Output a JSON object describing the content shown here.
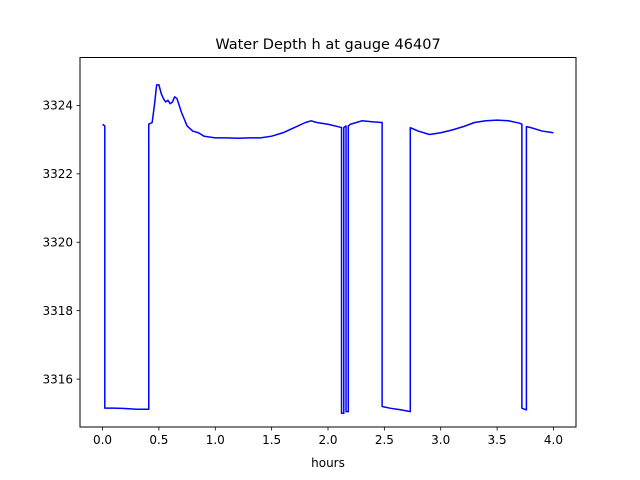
{
  "chart_data": {
    "type": "line",
    "title": "Water Depth h at gauge 46407",
    "xlabel": "hours",
    "ylabel": "",
    "xlim": [
      -0.2,
      4.2
    ],
    "ylim": [
      3314.6,
      3325.4
    ],
    "xticks": [
      0.0,
      0.5,
      1.0,
      1.5,
      2.0,
      2.5,
      3.0,
      3.5,
      4.0
    ],
    "xtick_labels": [
      "0.0",
      "0.5",
      "1.0",
      "1.5",
      "2.0",
      "2.5",
      "3.0",
      "3.5",
      "4.0"
    ],
    "yticks": [
      3316,
      3318,
      3320,
      3322,
      3324
    ],
    "ytick_labels": [
      "3316",
      "3318",
      "3320",
      "3322",
      "3324"
    ],
    "grid": false,
    "legend": "none",
    "series": [
      {
        "color": "#0000ff",
        "x": [
          0.0,
          0.02,
          0.02,
          0.1,
          0.2,
          0.3,
          0.41,
          0.41,
          0.44,
          0.46,
          0.48,
          0.5,
          0.52,
          0.54,
          0.56,
          0.58,
          0.6,
          0.62,
          0.64,
          0.66,
          0.68,
          0.7,
          0.75,
          0.8,
          0.85,
          0.9,
          1.0,
          1.1,
          1.2,
          1.3,
          1.4,
          1.5,
          1.6,
          1.7,
          1.8,
          1.85,
          1.9,
          2.0,
          2.1,
          2.12,
          2.12,
          2.14,
          2.14,
          2.16,
          2.16,
          2.18,
          2.18,
          2.2,
          2.3,
          2.4,
          2.48,
          2.48,
          2.55,
          2.65,
          2.73,
          2.73,
          2.8,
          2.9,
          3.0,
          3.1,
          3.2,
          3.3,
          3.4,
          3.5,
          3.6,
          3.7,
          3.72,
          3.72,
          3.76,
          3.76,
          3.8,
          3.9,
          4.0
        ],
        "y": [
          3323.45,
          3323.4,
          3315.15,
          3315.15,
          3315.14,
          3315.12,
          3315.12,
          3323.45,
          3323.5,
          3324.0,
          3324.6,
          3324.6,
          3324.35,
          3324.2,
          3324.1,
          3324.15,
          3324.05,
          3324.1,
          3324.25,
          3324.2,
          3324.0,
          3323.8,
          3323.4,
          3323.25,
          3323.2,
          3323.1,
          3323.05,
          3323.05,
          3323.04,
          3323.05,
          3323.05,
          3323.1,
          3323.2,
          3323.35,
          3323.5,
          3323.55,
          3323.5,
          3323.45,
          3323.37,
          3323.35,
          3315.0,
          3315.0,
          3323.35,
          3323.4,
          3315.05,
          3315.05,
          3323.4,
          3323.45,
          3323.55,
          3323.52,
          3323.5,
          3315.2,
          3315.15,
          3315.1,
          3315.05,
          3323.35,
          3323.25,
          3323.15,
          3323.2,
          3323.28,
          3323.38,
          3323.5,
          3323.55,
          3323.57,
          3323.55,
          3323.48,
          3323.45,
          3315.15,
          3315.1,
          3323.38,
          3323.35,
          3323.25,
          3323.2
        ]
      }
    ]
  }
}
